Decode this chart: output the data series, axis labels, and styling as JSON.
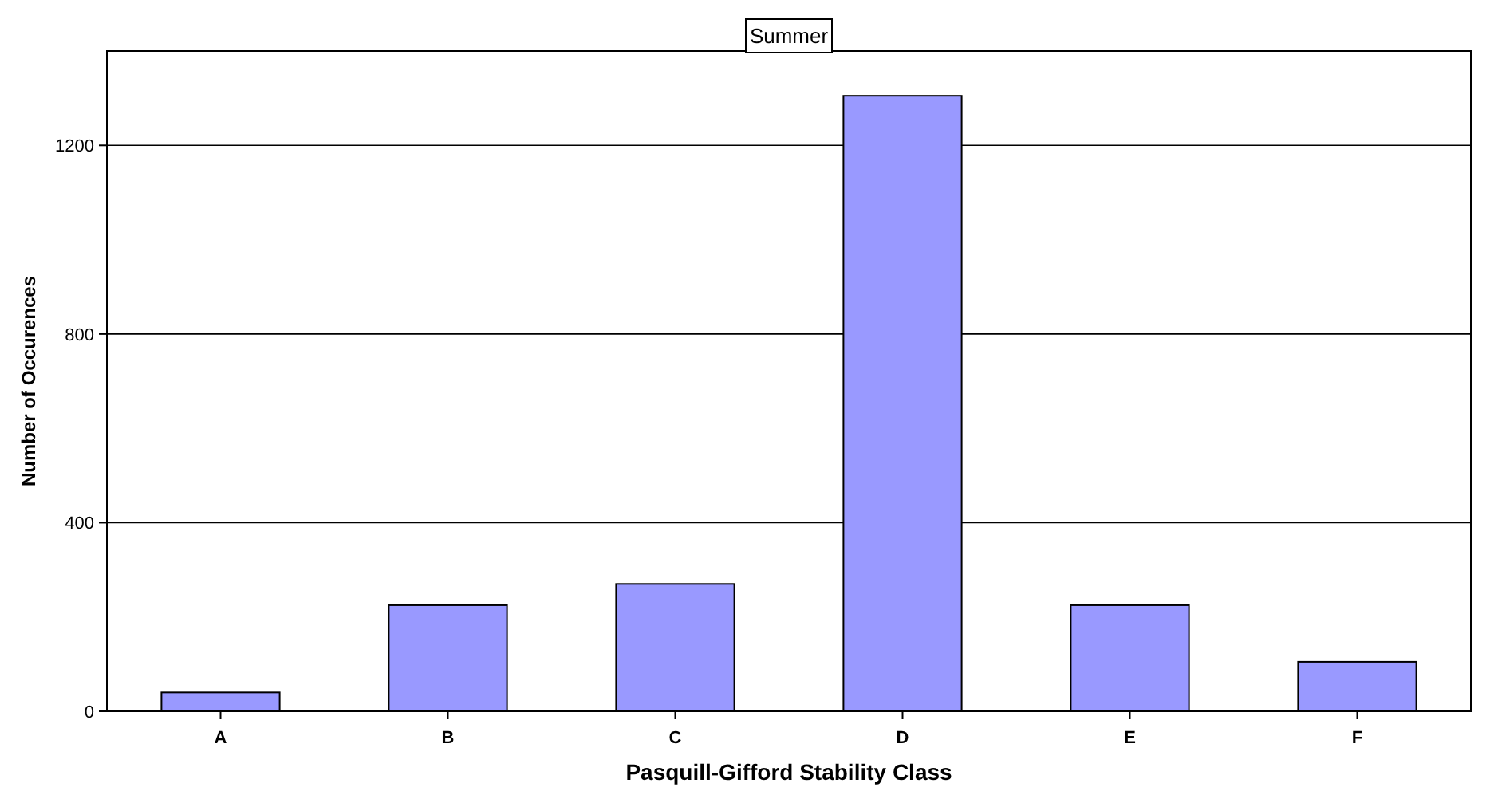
{
  "chart_data": {
    "type": "bar",
    "title": "Summer",
    "xlabel": "Pasquill-Gifford Stability Class",
    "ylabel": "Number of Occurences",
    "categories": [
      "A",
      "B",
      "C",
      "D",
      "E",
      "F"
    ],
    "values": [
      40,
      225,
      270,
      1305,
      225,
      105
    ],
    "color": "#9999ff",
    "ylim": [
      0,
      1400
    ],
    "yticks": [
      0,
      400,
      800,
      1200
    ],
    "grid": "y"
  }
}
